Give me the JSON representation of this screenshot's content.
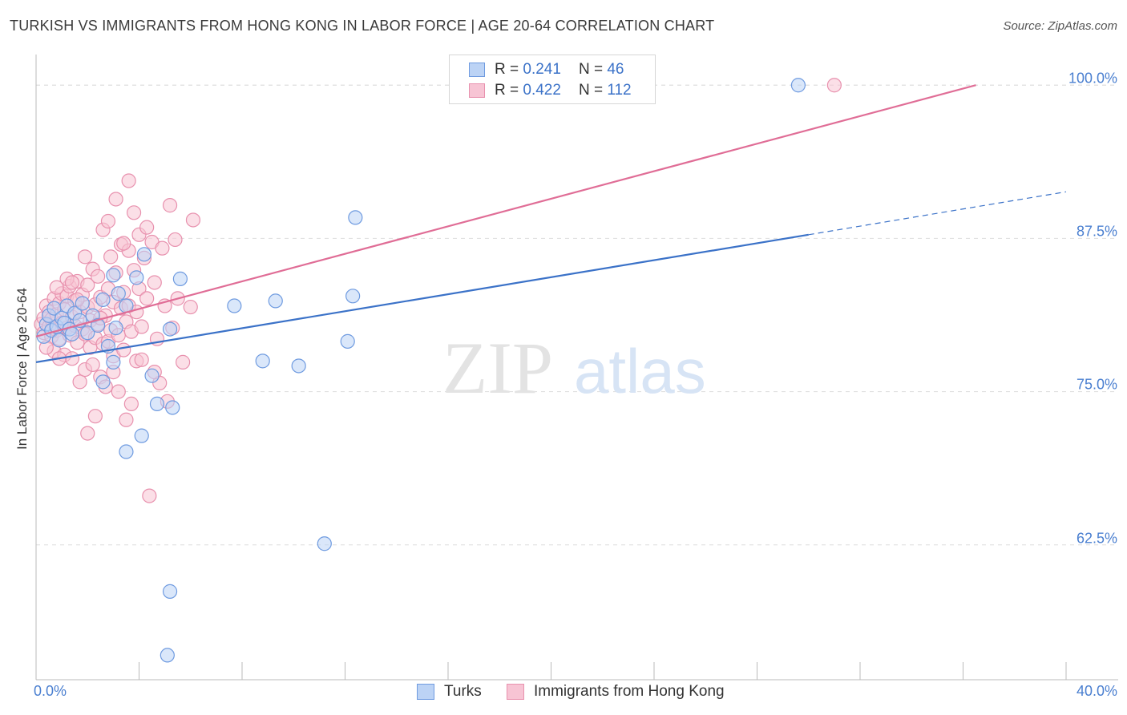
{
  "header": {
    "title": "TURKISH VS IMMIGRANTS FROM HONG KONG IN LABOR FORCE | AGE 20-64 CORRELATION CHART",
    "source": "Source: ZipAtlas.com"
  },
  "watermark": {
    "part1": "ZIP",
    "part2": "atlas"
  },
  "colors": {
    "blue": "#3b72c8",
    "blue_fill": "#bcd3f5",
    "pink": "#e06d96",
    "pink_fill": "#f7c4d4",
    "grid": "#dddddd",
    "tick_label": "#4a7fd0"
  },
  "legend": {
    "rows": [
      {
        "r_label": "R =",
        "r_value": "0.241",
        "n_label": "N =",
        "n_value": "46"
      },
      {
        "r_label": "R =",
        "r_value": "0.422",
        "n_label": "N =",
        "n_value": "112"
      }
    ]
  },
  "chart_data": {
    "type": "scatter",
    "title": "TURKISH VS IMMIGRANTS FROM HONG KONG IN LABOR FORCE | AGE 20-64 CORRELATION CHART",
    "xlabel": "",
    "ylabel": "In Labor Force | Age 20-64",
    "xlim": [
      0,
      40
    ],
    "ylim": [
      51.5,
      102.5
    ],
    "x_tick_labels": {
      "left": "0.0%",
      "right": "40.0%"
    },
    "y_ticks": [
      {
        "value": 100.0,
        "label": "100.0%"
      },
      {
        "value": 87.5,
        "label": "87.5%"
      },
      {
        "value": 75.0,
        "label": "75.0%"
      },
      {
        "value": 62.5,
        "label": "62.5%"
      }
    ],
    "series": [
      {
        "name": "Turks",
        "r": 0.241,
        "n": 46,
        "trend": {
          "x0": 0,
          "y0": 77.4,
          "x1": 30,
          "y1": 87.8,
          "dash_to_x": 40,
          "dash_to_y": 91.3
        },
        "points": [
          [
            0.3,
            79.5
          ],
          [
            0.4,
            80.5
          ],
          [
            0.5,
            81.2
          ],
          [
            0.6,
            80.0
          ],
          [
            0.7,
            81.8
          ],
          [
            0.8,
            80.3
          ],
          [
            0.9,
            79.2
          ],
          [
            1.0,
            81.0
          ],
          [
            1.1,
            80.6
          ],
          [
            1.2,
            82.0
          ],
          [
            1.3,
            80.1
          ],
          [
            1.4,
            79.7
          ],
          [
            1.5,
            81.4
          ],
          [
            1.7,
            80.8
          ],
          [
            1.8,
            82.2
          ],
          [
            2.0,
            79.8
          ],
          [
            2.2,
            81.2
          ],
          [
            2.4,
            80.4
          ],
          [
            2.6,
            82.5
          ],
          [
            2.8,
            78.7
          ],
          [
            2.6,
            75.8
          ],
          [
            3.0,
            77.4
          ],
          [
            3.1,
            80.2
          ],
          [
            3.2,
            83.0
          ],
          [
            3.5,
            82.0
          ],
          [
            3.9,
            84.3
          ],
          [
            3.0,
            84.5
          ],
          [
            4.2,
            86.2
          ],
          [
            4.5,
            76.3
          ],
          [
            4.7,
            74.0
          ],
          [
            5.3,
            73.7
          ],
          [
            5.2,
            80.1
          ],
          [
            5.6,
            84.2
          ],
          [
            4.1,
            71.4
          ],
          [
            3.5,
            70.1
          ],
          [
            7.7,
            82.0
          ],
          [
            8.8,
            77.5
          ],
          [
            9.3,
            82.4
          ],
          [
            10.2,
            77.1
          ],
          [
            11.2,
            62.6
          ],
          [
            12.1,
            79.1
          ],
          [
            12.3,
            82.8
          ],
          [
            12.4,
            89.2
          ],
          [
            5.2,
            58.7
          ],
          [
            5.1,
            53.5
          ],
          [
            29.6,
            100.0
          ]
        ]
      },
      {
        "name": "Immigrants from Hong Kong",
        "r": 0.422,
        "n": 112,
        "trend": {
          "x0": 0,
          "y0": 79.5,
          "x1": 36.5,
          "y1": 100.0
        },
        "points": [
          [
            0.2,
            80.5
          ],
          [
            0.3,
            81.0
          ],
          [
            0.3,
            79.8
          ],
          [
            0.4,
            82.0
          ],
          [
            0.5,
            80.3
          ],
          [
            0.5,
            81.5
          ],
          [
            0.6,
            79.5
          ],
          [
            0.6,
            80.9
          ],
          [
            0.7,
            82.6
          ],
          [
            0.7,
            78.3
          ],
          [
            0.8,
            80.0
          ],
          [
            0.8,
            81.3
          ],
          [
            0.9,
            79.3
          ],
          [
            0.9,
            82.2
          ],
          [
            1.0,
            80.6
          ],
          [
            1.0,
            83.0
          ],
          [
            1.1,
            78.0
          ],
          [
            1.1,
            81.7
          ],
          [
            1.2,
            80.2
          ],
          [
            1.2,
            82.8
          ],
          [
            1.3,
            79.6
          ],
          [
            1.3,
            83.6
          ],
          [
            1.4,
            81.1
          ],
          [
            1.4,
            77.7
          ],
          [
            1.5,
            80.4
          ],
          [
            1.5,
            82.4
          ],
          [
            1.6,
            79.0
          ],
          [
            1.6,
            84.0
          ],
          [
            1.7,
            81.5
          ],
          [
            1.7,
            75.8
          ],
          [
            1.8,
            80.1
          ],
          [
            1.8,
            82.9
          ],
          [
            1.9,
            76.8
          ],
          [
            1.9,
            79.7
          ],
          [
            2.0,
            81.9
          ],
          [
            2.0,
            83.7
          ],
          [
            2.1,
            78.6
          ],
          [
            2.1,
            80.8
          ],
          [
            2.2,
            85.0
          ],
          [
            2.2,
            77.2
          ],
          [
            2.3,
            82.1
          ],
          [
            2.3,
            79.4
          ],
          [
            2.4,
            84.4
          ],
          [
            2.4,
            80.5
          ],
          [
            2.5,
            76.2
          ],
          [
            2.5,
            82.7
          ],
          [
            2.6,
            78.9
          ],
          [
            2.6,
            88.2
          ],
          [
            2.7,
            81.2
          ],
          [
            2.7,
            75.4
          ],
          [
            2.8,
            83.4
          ],
          [
            2.8,
            79.1
          ],
          [
            2.9,
            86.0
          ],
          [
            2.9,
            80.0
          ],
          [
            3.0,
            77.9
          ],
          [
            3.0,
            82.3
          ],
          [
            3.1,
            90.7
          ],
          [
            3.1,
            84.7
          ],
          [
            3.2,
            79.6
          ],
          [
            3.2,
            75.0
          ],
          [
            3.3,
            81.8
          ],
          [
            3.3,
            87.0
          ],
          [
            3.4,
            78.4
          ],
          [
            3.4,
            83.1
          ],
          [
            3.5,
            72.7
          ],
          [
            3.5,
            80.7
          ],
          [
            3.6,
            86.5
          ],
          [
            3.6,
            82.0
          ],
          [
            3.7,
            79.9
          ],
          [
            3.7,
            74.0
          ],
          [
            3.8,
            89.6
          ],
          [
            3.8,
            84.9
          ],
          [
            3.9,
            81.5
          ],
          [
            3.9,
            77.5
          ],
          [
            4.0,
            87.8
          ],
          [
            4.0,
            83.4
          ],
          [
            4.1,
            80.3
          ],
          [
            4.1,
            77.6
          ],
          [
            4.2,
            85.9
          ],
          [
            4.3,
            82.6
          ],
          [
            4.4,
            66.5
          ],
          [
            4.5,
            87.2
          ],
          [
            4.6,
            83.9
          ],
          [
            4.7,
            79.3
          ],
          [
            4.8,
            75.7
          ],
          [
            4.9,
            86.7
          ],
          [
            5.0,
            82.0
          ],
          [
            5.1,
            74.2
          ],
          [
            5.2,
            90.2
          ],
          [
            5.4,
            87.4
          ],
          [
            5.5,
            82.6
          ],
          [
            5.7,
            77.4
          ],
          [
            6.1,
            89.0
          ],
          [
            2.0,
            71.6
          ],
          [
            2.8,
            88.9
          ],
          [
            3.4,
            87.1
          ],
          [
            1.6,
            82.5
          ],
          [
            1.2,
            84.2
          ],
          [
            0.8,
            83.5
          ],
          [
            1.9,
            86.0
          ],
          [
            4.3,
            88.4
          ],
          [
            3.6,
            92.2
          ],
          [
            0.9,
            77.7
          ],
          [
            0.4,
            78.6
          ],
          [
            2.3,
            73.0
          ],
          [
            4.6,
            76.6
          ],
          [
            5.3,
            80.2
          ],
          [
            6.0,
            81.9
          ],
          [
            3.0,
            76.6
          ],
          [
            2.5,
            81.0
          ],
          [
            1.4,
            83.9
          ],
          [
            31.0,
            100.0
          ]
        ]
      }
    ],
    "legend_position": "top-center",
    "grid": true
  },
  "bottom_legend": {
    "items": [
      "Turks",
      "Immigrants from Hong Kong"
    ]
  }
}
